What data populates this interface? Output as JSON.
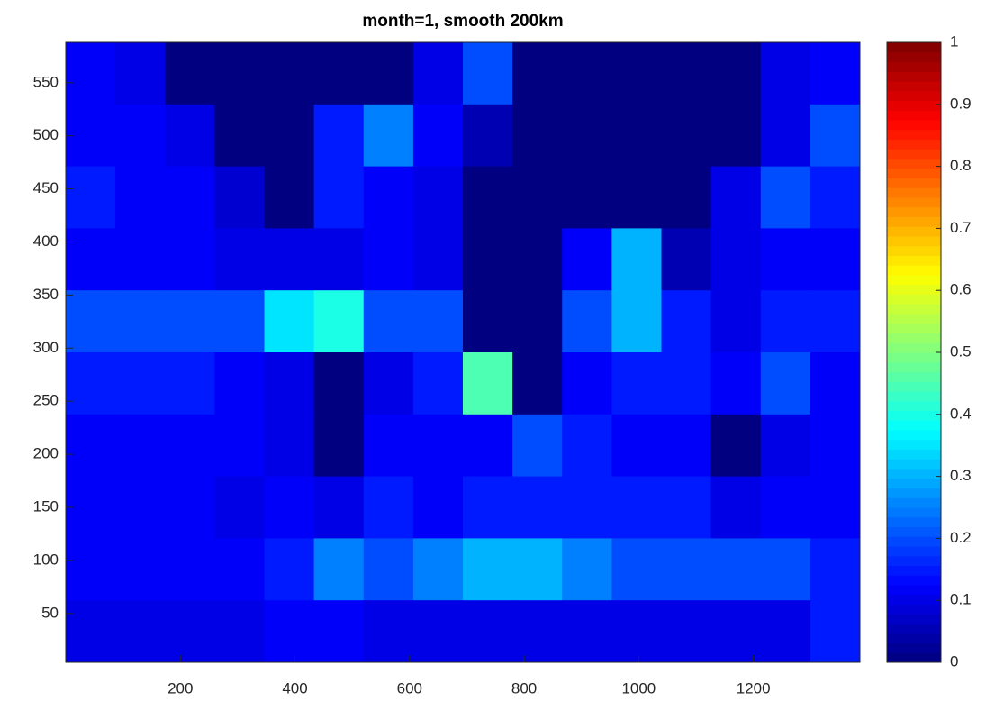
{
  "chart_data": {
    "type": "heatmap",
    "title": "month=1, smooth 200km",
    "xlim": [
      0,
      1386
    ],
    "ylim": [
      4,
      588
    ],
    "xticks": [
      200,
      400,
      600,
      800,
      1000,
      1200
    ],
    "yticks": [
      50,
      100,
      150,
      200,
      250,
      300,
      350,
      400,
      450,
      500,
      550
    ],
    "colormap": "jet",
    "clim": [
      0,
      1
    ],
    "cticks": [
      0,
      0.1,
      0.2,
      0.3,
      0.4,
      0.5,
      0.6,
      0.7,
      0.8,
      0.9,
      1
    ],
    "z": [
      [
        0.12,
        0.1,
        0,
        0,
        0,
        0,
        0,
        0.1,
        0.2,
        0,
        0,
        0,
        0,
        0,
        0.1,
        0.12
      ],
      [
        0.12,
        0.12,
        0.1,
        0,
        0,
        0.15,
        0.25,
        0.12,
        0.05,
        0,
        0,
        0,
        0,
        0,
        0.1,
        0.2
      ],
      [
        0.15,
        0.12,
        0.12,
        0.08,
        0,
        0.15,
        0.12,
        0.1,
        0,
        0,
        0,
        0,
        0,
        0.1,
        0.2,
        0.15
      ],
      [
        0.12,
        0.12,
        0.12,
        0.1,
        0.1,
        0.1,
        0.12,
        0.1,
        0,
        0,
        0.12,
        0.3,
        0.05,
        0.1,
        0.12,
        0.12
      ],
      [
        0.2,
        0.2,
        0.2,
        0.2,
        0.35,
        0.4,
        0.2,
        0.2,
        0,
        0,
        0.2,
        0.3,
        0.15,
        0.1,
        0.15,
        0.15
      ],
      [
        0.15,
        0.15,
        0.15,
        0.12,
        0.1,
        0,
        0.1,
        0.15,
        0.45,
        0,
        0.12,
        0.15,
        0.15,
        0.12,
        0.2,
        0.12
      ],
      [
        0.12,
        0.12,
        0.12,
        0.12,
        0.1,
        0,
        0.12,
        0.12,
        0.12,
        0.2,
        0.15,
        0.12,
        0.12,
        0,
        0.1,
        0.12
      ],
      [
        0.12,
        0.12,
        0.12,
        0.1,
        0.12,
        0.1,
        0.15,
        0.12,
        0.15,
        0.15,
        0.15,
        0.15,
        0.15,
        0.1,
        0.12,
        0.12
      ],
      [
        0.12,
        0.12,
        0.12,
        0.12,
        0.15,
        0.25,
        0.2,
        0.25,
        0.3,
        0.3,
        0.25,
        0.2,
        0.2,
        0.2,
        0.2,
        0.15
      ],
      [
        0.1,
        0.1,
        0.1,
        0.1,
        0.12,
        0.12,
        0.1,
        0.1,
        0.1,
        0.1,
        0.1,
        0.1,
        0.1,
        0.1,
        0.1,
        0.15
      ]
    ]
  }
}
